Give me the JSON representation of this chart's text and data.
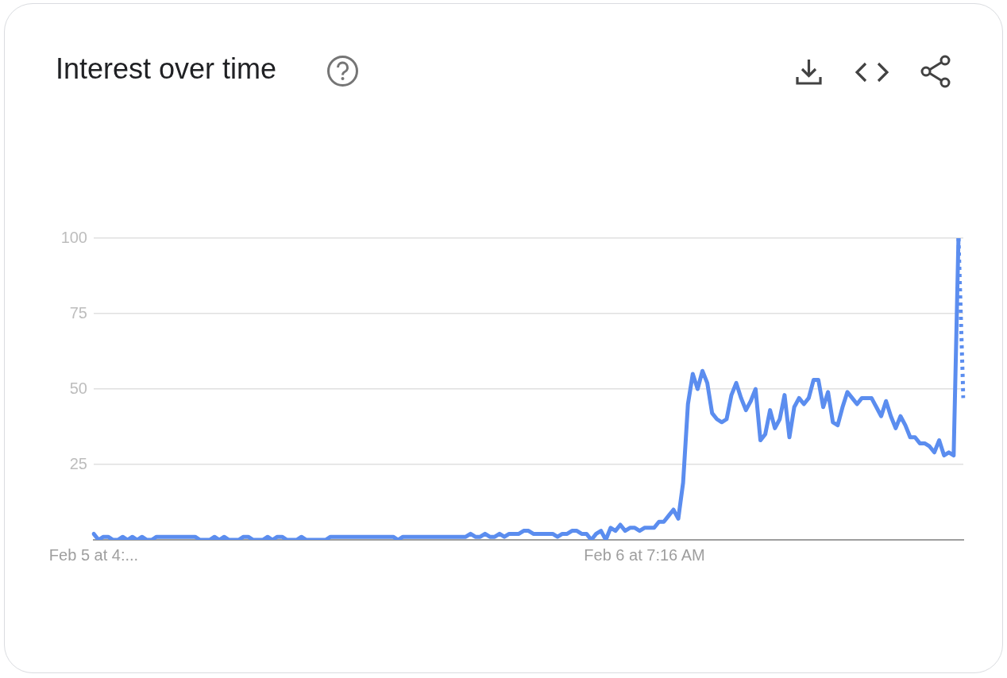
{
  "chart_data": {
    "type": "line",
    "title": "Interest over time",
    "categories": [
      "Feb 5 at 4:...",
      null,
      null,
      null,
      null,
      null,
      null,
      null,
      null,
      null,
      null,
      null,
      null,
      null,
      null,
      null,
      null,
      null,
      null,
      null,
      null,
      null,
      null,
      null,
      null,
      null,
      null,
      null,
      null,
      null,
      null,
      null,
      null,
      null,
      null,
      null,
      null,
      null,
      null,
      null,
      null,
      null,
      null,
      null,
      null,
      null,
      null,
      null,
      null,
      null,
      null,
      null,
      null,
      null,
      null,
      null,
      null,
      null,
      null,
      null,
      null,
      null,
      null,
      null,
      null,
      null,
      null,
      null,
      null,
      null,
      null,
      null,
      null,
      null,
      null,
      null,
      null,
      null,
      null,
      null,
      null,
      null,
      null,
      null,
      null,
      null,
      null,
      null,
      null,
      null,
      null,
      null,
      null,
      null,
      null,
      null,
      null,
      null,
      null,
      null,
      null,
      null,
      null,
      null,
      null,
      null,
      null,
      null,
      null,
      null,
      null,
      null,
      null,
      null,
      "Feb 6 at 7:16 AM",
      null,
      null,
      null,
      null,
      null,
      null,
      null,
      null,
      null,
      null,
      null,
      null,
      null,
      null,
      null,
      null,
      null,
      null,
      null,
      null,
      null,
      null,
      null,
      null,
      null,
      null,
      null,
      null,
      null,
      null,
      null,
      null,
      null,
      null,
      null,
      null,
      null,
      null,
      null,
      null,
      null,
      null,
      null,
      null,
      null,
      null,
      null,
      null,
      null,
      null,
      null,
      null,
      null,
      null,
      null,
      null,
      null,
      null,
      null,
      null,
      null,
      null,
      null,
      null,
      null,
      null
    ],
    "series": [
      {
        "color": "#5b8def",
        "line_style": "solid",
        "values": [
          2,
          0,
          1,
          1,
          0,
          0,
          1,
          0,
          1,
          0,
          1,
          0,
          0,
          1,
          1,
          1,
          1,
          1,
          1,
          1,
          1,
          1,
          0,
          0,
          0,
          1,
          0,
          1,
          0,
          0,
          0,
          1,
          1,
          0,
          0,
          0,
          1,
          0,
          1,
          1,
          0,
          0,
          0,
          1,
          0,
          0,
          0,
          0,
          0,
          1,
          1,
          1,
          1,
          1,
          1,
          1,
          1,
          1,
          1,
          1,
          1,
          1,
          1,
          0,
          1,
          1,
          1,
          1,
          1,
          1,
          1,
          1,
          1,
          1,
          1,
          1,
          1,
          1,
          2,
          1,
          1,
          2,
          1,
          1,
          2,
          1,
          2,
          2,
          2,
          3,
          3,
          2,
          2,
          2,
          2,
          2,
          1,
          2,
          2,
          3,
          3,
          2,
          2,
          0,
          2,
          3,
          0,
          4,
          3,
          5,
          3,
          4,
          4,
          3,
          4,
          4,
          4,
          6,
          6,
          8,
          10,
          7,
          19,
          45,
          55,
          50,
          56,
          52,
          42,
          40,
          39,
          40,
          48,
          52,
          47,
          43,
          46,
          50,
          33,
          35,
          43,
          37,
          40,
          48,
          34,
          44,
          47,
          45,
          47,
          53,
          53,
          44,
          49,
          39,
          38,
          44,
          49,
          47,
          45,
          47,
          47,
          47,
          44,
          41,
          46,
          41,
          37,
          41,
          38,
          34,
          34,
          32,
          32,
          31,
          29,
          33,
          28,
          29,
          28,
          100,
          null
        ]
      },
      {
        "color": "#5b8def",
        "line_style": "dotted",
        "values": [
          null,
          null,
          null,
          null,
          null,
          null,
          null,
          null,
          null,
          null,
          null,
          null,
          null,
          null,
          null,
          null,
          null,
          null,
          null,
          null,
          null,
          null,
          null,
          null,
          null,
          null,
          null,
          null,
          null,
          null,
          null,
          null,
          null,
          null,
          null,
          null,
          null,
          null,
          null,
          null,
          null,
          null,
          null,
          null,
          null,
          null,
          null,
          null,
          null,
          null,
          null,
          null,
          null,
          null,
          null,
          null,
          null,
          null,
          null,
          null,
          null,
          null,
          null,
          null,
          null,
          null,
          null,
          null,
          null,
          null,
          null,
          null,
          null,
          null,
          null,
          null,
          null,
          null,
          null,
          null,
          null,
          null,
          null,
          null,
          null,
          null,
          null,
          null,
          null,
          null,
          null,
          null,
          null,
          null,
          null,
          null,
          null,
          null,
          null,
          null,
          null,
          null,
          null,
          null,
          null,
          null,
          null,
          null,
          null,
          null,
          null,
          null,
          null,
          null,
          null,
          null,
          null,
          null,
          null,
          null,
          null,
          null,
          null,
          null,
          null,
          null,
          null,
          null,
          null,
          null,
          null,
          null,
          null,
          null,
          null,
          null,
          null,
          null,
          null,
          null,
          null,
          null,
          null,
          null,
          null,
          null,
          null,
          null,
          null,
          null,
          null,
          null,
          null,
          null,
          null,
          null,
          null,
          null,
          null,
          null,
          null,
          null,
          null,
          null,
          null,
          null,
          null,
          null,
          null,
          null,
          null,
          null,
          null,
          null,
          null,
          null,
          null,
          null,
          null,
          100,
          47
        ]
      }
    ],
    "ylim": [
      0,
      100
    ],
    "yticks": [
      {
        "value": 0,
        "label": null
      },
      25,
      50,
      75,
      100
    ],
    "grid": "y",
    "legend": false,
    "marker": "none"
  }
}
